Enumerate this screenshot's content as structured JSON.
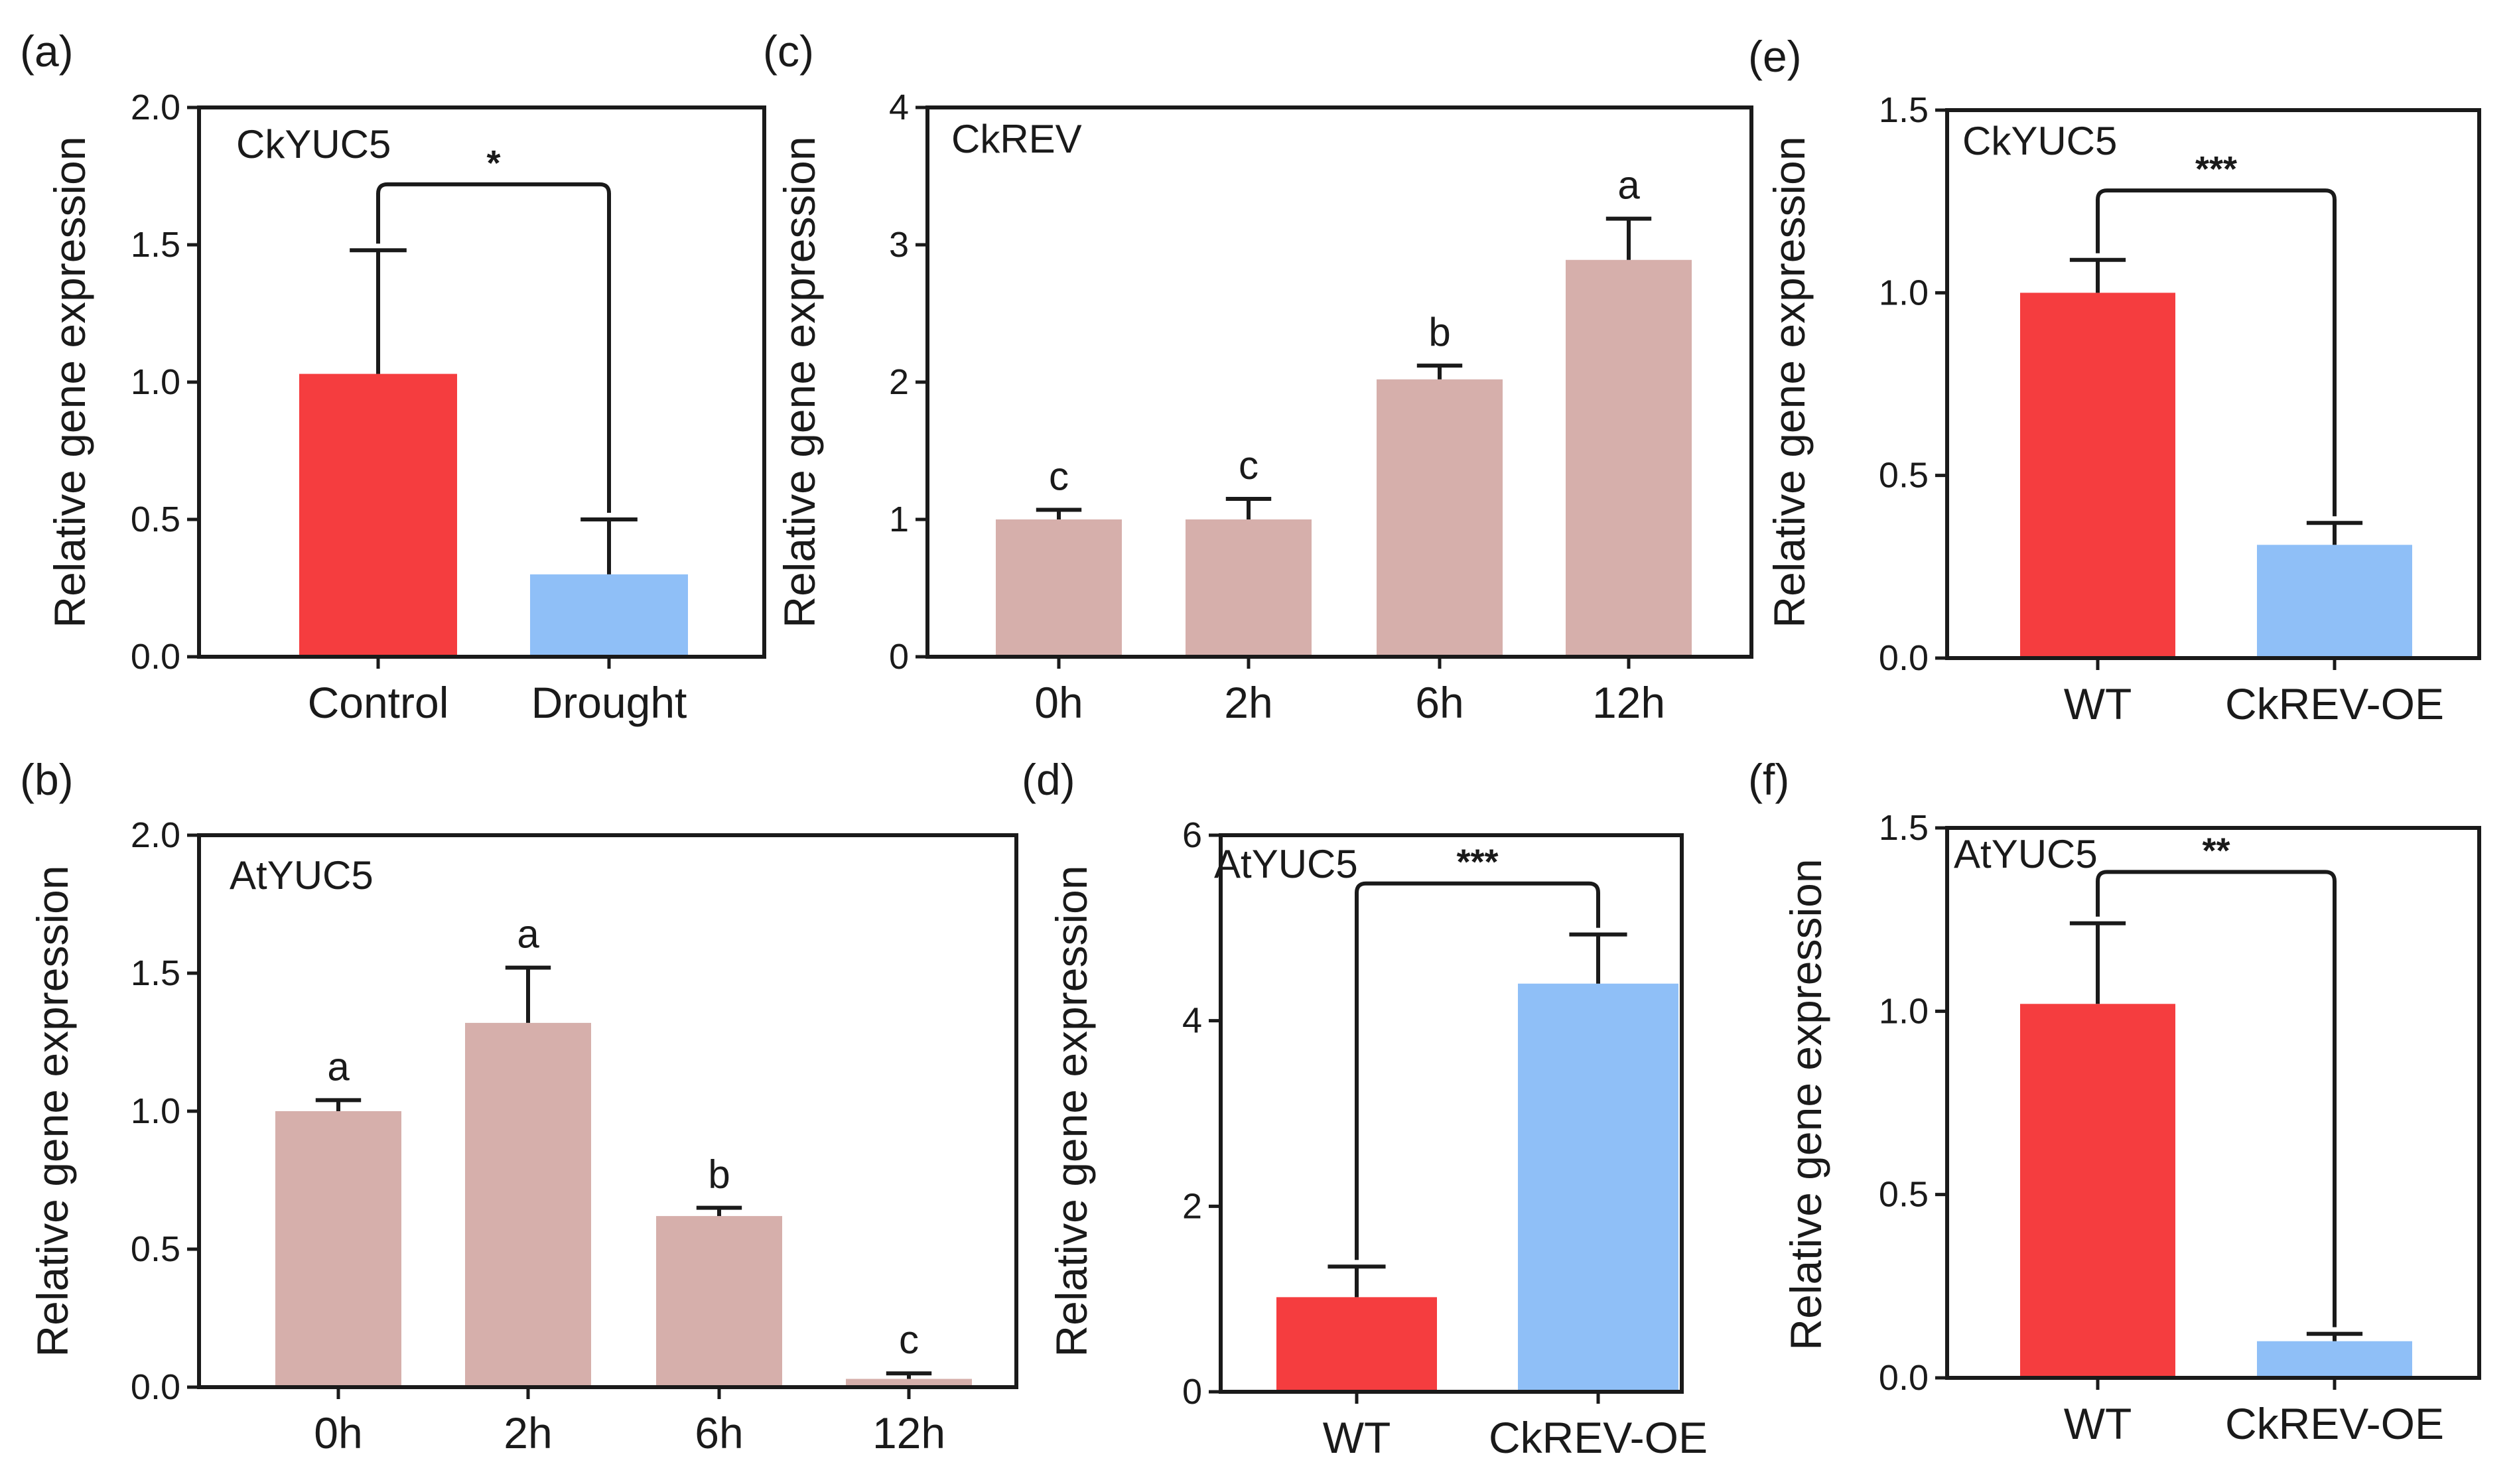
{
  "figure": {
    "description_units": "Relative gene expression",
    "colors": {
      "red": "#F53D3F",
      "blue": "#8FBFF7",
      "rose": "#D6AFAB",
      "ink": "#1a1a1a"
    }
  },
  "chart_data": [
    {
      "id": "a",
      "panel_label": "(a)",
      "type": "bar",
      "title": "CkYUC5",
      "ylabel": "Relative gene expression",
      "xlabel": "",
      "ylim": [
        0,
        2.0
      ],
      "yticks": [
        "0.0",
        "0.5",
        "1.0",
        "1.5",
        "2.0"
      ],
      "ytick_values": [
        0,
        0.5,
        1.0,
        1.5,
        2.0
      ],
      "categories": [
        "Control",
        "Drought"
      ],
      "values": [
        1.03,
        0.3
      ],
      "errors": [
        0.45,
        0.2
      ],
      "bar_colors": [
        "red",
        "blue"
      ],
      "bar_letters": [],
      "significance": {
        "label": "*",
        "from": 0,
        "to": 1,
        "y": 1.72
      }
    },
    {
      "id": "b",
      "panel_label": "(b)",
      "type": "bar",
      "title": "AtYUC5",
      "ylabel": "Relative gene expression",
      "xlabel": "",
      "ylim": [
        0,
        2.0
      ],
      "yticks": [
        "0.0",
        "0.5",
        "1.0",
        "1.5",
        "2.0"
      ],
      "ytick_values": [
        0,
        0.5,
        1.0,
        1.5,
        2.0
      ],
      "categories": [
        "0h",
        "2h",
        "6h",
        "12h"
      ],
      "values": [
        1.0,
        1.32,
        0.62,
        0.03
      ],
      "errors": [
        0.04,
        0.2,
        0.03,
        0.02
      ],
      "bar_colors": [
        "rose",
        "rose",
        "rose",
        "rose"
      ],
      "bar_letters": [
        "a",
        "a",
        "b",
        "c"
      ],
      "significance": null
    },
    {
      "id": "c",
      "panel_label": "(c)",
      "type": "bar",
      "title": "CkREV",
      "ylabel": "Relative gene expression",
      "xlabel": "",
      "ylim": [
        0,
        4
      ],
      "yticks": [
        "0",
        "1",
        "2",
        "3",
        "4"
      ],
      "ytick_values": [
        0,
        1,
        2,
        3,
        4
      ],
      "categories": [
        "0h",
        "2h",
        "6h",
        "12h"
      ],
      "values": [
        1.0,
        1.0,
        2.02,
        2.89
      ],
      "errors": [
        0.07,
        0.15,
        0.1,
        0.3
      ],
      "bar_colors": [
        "rose",
        "rose",
        "rose",
        "rose"
      ],
      "bar_letters": [
        "c",
        "c",
        "b",
        "a"
      ],
      "significance": null
    },
    {
      "id": "d",
      "panel_label": "(d)",
      "type": "bar",
      "title": "AtYUC5",
      "ylabel": "Relative gene expression",
      "xlabel": "",
      "ylim": [
        0,
        6
      ],
      "yticks": [
        "0",
        "2",
        "4",
        "6"
      ],
      "ytick_values": [
        0,
        2,
        4,
        6
      ],
      "categories": [
        "WT",
        "CkREV-OE"
      ],
      "values": [
        1.02,
        4.4
      ],
      "errors": [
        0.33,
        0.53
      ],
      "bar_colors": [
        "red",
        "blue"
      ],
      "bar_letters": [],
      "significance": {
        "label": "***",
        "from": 0,
        "to": 1,
        "y": 5.48
      }
    },
    {
      "id": "e",
      "panel_label": "(e)",
      "type": "bar",
      "title": "CkYUC5",
      "ylabel": "Relative gene expression",
      "xlabel": "",
      "ylim": [
        0,
        1.5
      ],
      "yticks": [
        "0.0",
        "0.5",
        "1.0",
        "1.5"
      ],
      "ytick_values": [
        0,
        0.5,
        1.0,
        1.5
      ],
      "categories": [
        "WT",
        "CkREV-OE"
      ],
      "values": [
        1.0,
        0.31
      ],
      "errors": [
        0.09,
        0.06
      ],
      "bar_colors": [
        "red",
        "blue"
      ],
      "bar_letters": [],
      "significance": {
        "label": "***",
        "from": 0,
        "to": 1,
        "y": 1.28
      }
    },
    {
      "id": "f",
      "panel_label": "(f)",
      "type": "bar",
      "title": "AtYUC5",
      "ylabel": "Relative gene expression",
      "xlabel": "",
      "ylim": [
        0,
        1.5
      ],
      "yticks": [
        "0.0",
        "0.5",
        "1.0",
        "1.5"
      ],
      "ytick_values": [
        0,
        0.5,
        1.0,
        1.5
      ],
      "categories": [
        "WT",
        "CkREV-OE"
      ],
      "values": [
        1.02,
        0.1
      ],
      "errors": [
        0.22,
        0.02
      ],
      "bar_colors": [
        "red",
        "blue"
      ],
      "bar_letters": [],
      "significance": {
        "label": "**",
        "from": 0,
        "to": 1,
        "y": 1.38
      }
    }
  ]
}
